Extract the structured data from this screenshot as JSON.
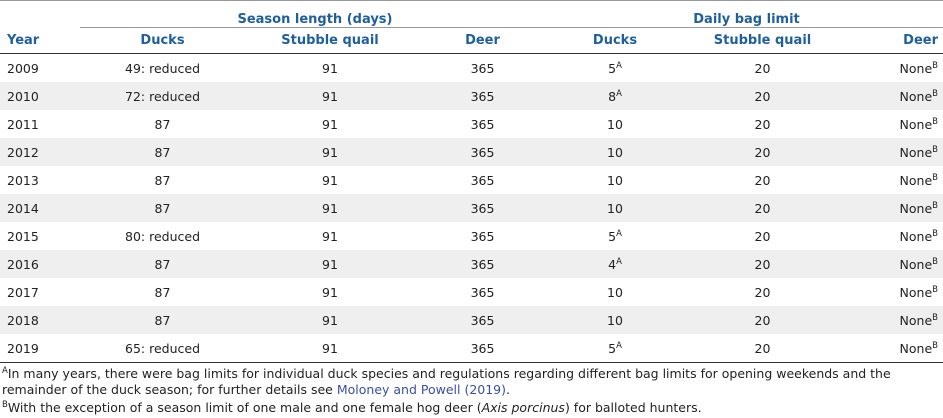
{
  "table": {
    "group_headers": [
      "Season length (days)",
      "Daily bag limit"
    ],
    "columns": [
      "Year",
      "Ducks",
      "Stubble quail",
      "Deer",
      "Ducks",
      "Stubble quail",
      "Deer"
    ],
    "rows": [
      [
        2009,
        "49: reduced",
        91,
        365,
        {
          "text": 5,
          "note": "A"
        },
        20,
        {
          "text": "None",
          "note": "B"
        }
      ],
      [
        2010,
        "72: reduced",
        91,
        365,
        {
          "text": 8,
          "note": "A"
        },
        20,
        {
          "text": "None",
          "note": "B"
        }
      ],
      [
        2011,
        87,
        91,
        365,
        10,
        20,
        {
          "text": "None",
          "note": "B"
        }
      ],
      [
        2012,
        87,
        91,
        365,
        10,
        20,
        {
          "text": "None",
          "note": "B"
        }
      ],
      [
        2013,
        87,
        91,
        365,
        10,
        20,
        {
          "text": "None",
          "note": "B"
        }
      ],
      [
        2014,
        87,
        91,
        365,
        10,
        20,
        {
          "text": "None",
          "note": "B"
        }
      ],
      [
        2015,
        "80: reduced",
        91,
        365,
        {
          "text": 5,
          "note": "A"
        },
        20,
        {
          "text": "None",
          "note": "B"
        }
      ],
      [
        2016,
        87,
        91,
        365,
        {
          "text": 4,
          "note": "A"
        },
        20,
        {
          "text": "None",
          "note": "B"
        }
      ],
      [
        2017,
        87,
        91,
        365,
        10,
        20,
        {
          "text": "None",
          "note": "B"
        }
      ],
      [
        2018,
        87,
        91,
        365,
        10,
        20,
        {
          "text": "None",
          "note": "B"
        }
      ],
      [
        2019,
        "65: reduced",
        91,
        365,
        {
          "text": 5,
          "note": "A"
        },
        20,
        {
          "text": "None",
          "note": "B"
        }
      ]
    ]
  },
  "footnotes": [
    {
      "mark": "A",
      "text": "In many years, there were bag limits for individual duck species and regulations regarding different bag limits for opening weekends and the remainder of the duck season; for further details see ",
      "link": "Moloney and Powell (2019)",
      "end": "."
    },
    {
      "mark": "B",
      "text": "With the exception of a season limit of one male and one female hog deer (",
      "italic": "Axis porcinus",
      "end": ") for balloted hunters."
    }
  ]
}
